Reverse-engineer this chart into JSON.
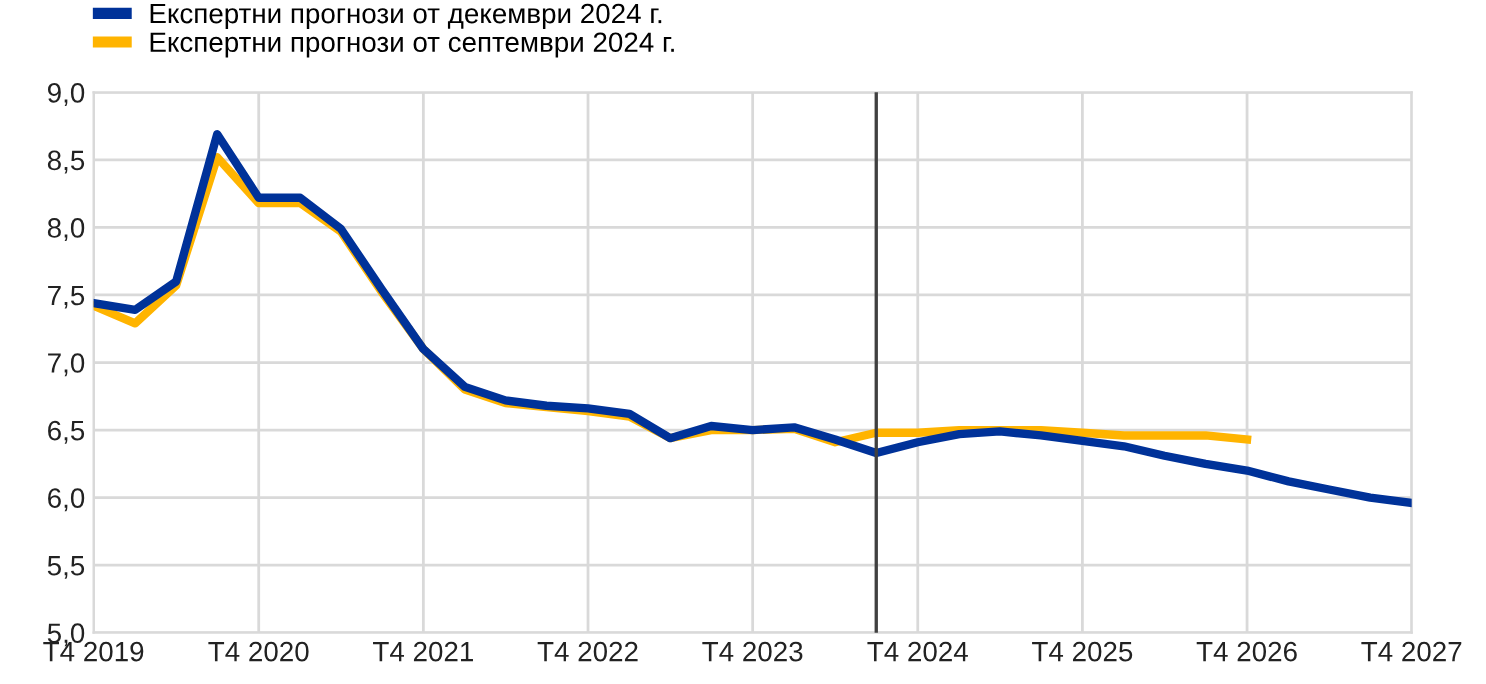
{
  "chart_data": {
    "type": "line",
    "x": [
      "2019-10",
      "2020-01",
      "2020-04",
      "2020-07",
      "2020-10",
      "2021-01",
      "2021-04",
      "2021-07",
      "2021-10",
      "2022-01",
      "2022-04",
      "2022-07",
      "2022-10",
      "2023-01",
      "2023-04",
      "2023-07",
      "2023-10",
      "2024-01",
      "2024-04",
      "2024-07",
      "2024-10",
      "2025-01",
      "2025-04",
      "2025-07",
      "2025-10",
      "2026-01",
      "2026-04",
      "2026-07",
      "2026-10",
      "2027-01",
      "2027-04",
      "2027-07",
      "2027-10"
    ],
    "series": [
      {
        "name": "Експертни прогнози от септември 2024 г.",
        "color": "#ffb400",
        "values": [
          7.42,
          7.29,
          7.57,
          8.52,
          8.18,
          8.18,
          7.97,
          7.52,
          7.1,
          6.8,
          6.7,
          6.67,
          6.64,
          6.6,
          6.44,
          6.5,
          6.5,
          6.51,
          6.41,
          6.48,
          6.48,
          6.5,
          6.5,
          6.5,
          6.48,
          6.46,
          6.46,
          6.46,
          6.43,
          null,
          null,
          null,
          null
        ]
      },
      {
        "name": "Експертни прогнози от декември 2024 г.",
        "color": "#003299",
        "values": [
          7.44,
          7.39,
          7.6,
          8.69,
          8.22,
          8.22,
          7.99,
          7.54,
          7.1,
          6.82,
          6.72,
          6.68,
          6.66,
          6.62,
          6.44,
          6.53,
          6.5,
          6.52,
          6.43,
          6.33,
          6.41,
          6.47,
          6.49,
          6.46,
          6.42,
          6.38,
          6.31,
          6.25,
          6.2,
          6.12,
          6.06,
          6.0,
          5.96
        ]
      }
    ],
    "xlim": [
      "2019-10",
      "2027-10"
    ],
    "xticks": [
      {
        "value": "2019-10",
        "label": "T4 2019"
      },
      {
        "value": "2020-10",
        "label": "T4 2020"
      },
      {
        "value": "2021-10",
        "label": "T4 2021"
      },
      {
        "value": "2022-10",
        "label": "T4 2022"
      },
      {
        "value": "2023-10",
        "label": "T4 2023"
      },
      {
        "value": "2024-10",
        "label": "T4 2024"
      },
      {
        "value": "2025-10",
        "label": "T4 2025"
      },
      {
        "value": "2026-10",
        "label": "T4 2026"
      },
      {
        "value": "2027-10",
        "label": "T4 2027"
      }
    ],
    "ylim": [
      5.0,
      9.0
    ],
    "yticks": [
      {
        "value": 5.0,
        "label": "5,0"
      },
      {
        "value": 5.5,
        "label": "5,5"
      },
      {
        "value": 6.0,
        "label": "6,0"
      },
      {
        "value": 6.5,
        "label": "6,5"
      },
      {
        "value": 7.0,
        "label": "7,0"
      },
      {
        "value": 7.5,
        "label": "7,5"
      },
      {
        "value": 8.0,
        "label": "8,0"
      },
      {
        "value": 8.5,
        "label": "8,5"
      },
      {
        "value": 9.0,
        "label": "9,0"
      }
    ],
    "ref_lines": [
      {
        "axis": "x",
        "value": "2024-07",
        "label": null,
        "color": "#404040"
      }
    ],
    "grid": true,
    "legend": "top left",
    "marker": "none",
    "line_style": "solid"
  }
}
